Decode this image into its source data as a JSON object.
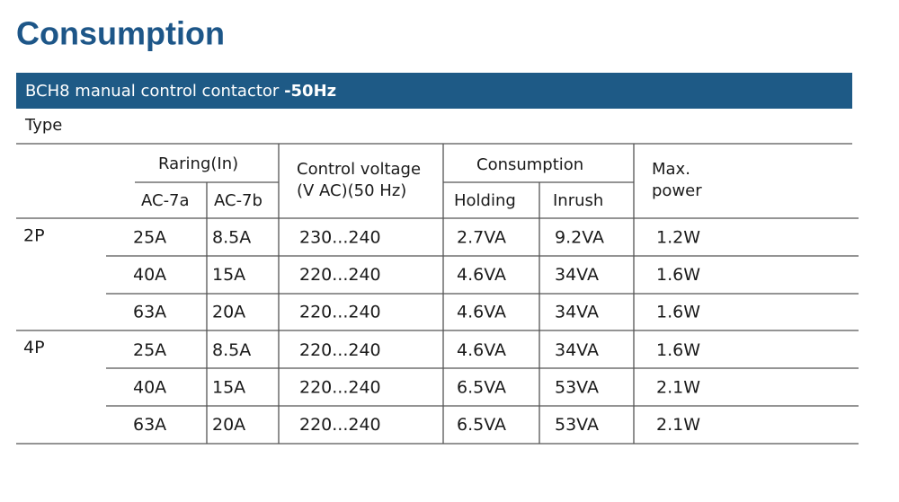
{
  "title": "Consumption",
  "banner": {
    "text": "BCH8 manual control contactor ",
    "bold": "-50Hz"
  },
  "table": {
    "type_label": "Type",
    "header": {
      "rating": "Raring(In)",
      "ac7a": "AC-7a",
      "ac7b": "AC-7b",
      "voltage": [
        "Control voltage",
        "(V AC)(50 Hz)"
      ],
      "consumption": "Consumption",
      "holding": "Holding",
      "inrush": "Inrush",
      "max_power": [
        "Max.",
        "power"
      ]
    },
    "groups": [
      {
        "label": "2P",
        "rows": [
          [
            "25A",
            "8.5A",
            "230...240",
            "2.7VA",
            "9.2VA",
            "1.2W"
          ],
          [
            "40A",
            "15A",
            "220...240",
            "4.6VA",
            "34VA",
            "1.6W"
          ],
          [
            "63A",
            "20A",
            "220...240",
            "4.6VA",
            "34VA",
            "1.6W"
          ]
        ]
      },
      {
        "label": "4P",
        "rows": [
          [
            "25A",
            "8.5A",
            "220...240",
            "4.6VA",
            "34VA",
            "1.6W"
          ],
          [
            "40A",
            "15A",
            "220...240",
            "6.5VA",
            "53VA",
            "2.1W"
          ],
          [
            "63A",
            "20A",
            "220...240",
            "6.5VA",
            "53VA",
            "2.1W"
          ]
        ]
      }
    ]
  }
}
